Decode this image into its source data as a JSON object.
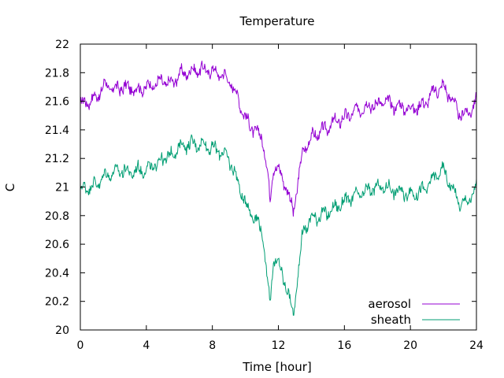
{
  "chart_data": {
    "type": "line",
    "title": "Temperature",
    "xlabel": "Time [hour]",
    "ylabel": "C",
    "xlim": [
      0,
      24
    ],
    "ylim": [
      20,
      22
    ],
    "x_ticks": [
      "0",
      "4",
      "8",
      "12",
      "16",
      "20",
      "24"
    ],
    "y_ticks": [
      "20",
      "20.2",
      "20.4",
      "20.6",
      "20.8",
      "21",
      "21.2",
      "21.4",
      "21.6",
      "21.8",
      "22"
    ],
    "grid": false,
    "legend_position": "bottom-right",
    "series": [
      {
        "name": "aerosol",
        "color": "#9400d3",
        "x": [
          0,
          0.5,
          1,
          1.5,
          2,
          2.5,
          3,
          3.5,
          4,
          4.5,
          5,
          5.5,
          6,
          6.5,
          7,
          7.5,
          8,
          8.5,
          9,
          9.5,
          10,
          10.5,
          11,
          11.3,
          11.5,
          11.7,
          12,
          12.5,
          12.9,
          13.2,
          13.5,
          14,
          14.5,
          15,
          15.5,
          16,
          16.5,
          17,
          17.5,
          18,
          18.5,
          19,
          19.5,
          20,
          20.5,
          21,
          21.5,
          22,
          22.5,
          23,
          23.5,
          24
        ],
        "y": [
          21.58,
          21.6,
          21.63,
          21.72,
          21.68,
          21.7,
          21.69,
          21.68,
          21.7,
          21.72,
          21.74,
          21.72,
          21.79,
          21.8,
          21.82,
          21.82,
          21.81,
          21.79,
          21.75,
          21.64,
          21.48,
          21.4,
          21.35,
          21.15,
          20.9,
          21.15,
          21.12,
          21.0,
          20.82,
          21.05,
          21.25,
          21.35,
          21.38,
          21.42,
          21.46,
          21.48,
          21.52,
          21.55,
          21.57,
          21.58,
          21.6,
          21.57,
          21.56,
          21.55,
          21.56,
          21.6,
          21.68,
          21.7,
          21.62,
          21.5,
          21.52,
          21.6
        ]
      },
      {
        "name": "sheath",
        "color": "#009e73",
        "x": [
          0,
          0.5,
          1,
          1.5,
          2,
          2.5,
          3,
          3.5,
          4,
          4.5,
          5,
          5.5,
          6,
          6.5,
          7,
          7.5,
          8,
          8.5,
          9,
          9.5,
          10,
          10.5,
          11,
          11.3,
          11.5,
          11.7,
          12,
          12.5,
          12.9,
          13.2,
          13.5,
          14,
          14.5,
          15,
          15.5,
          16,
          16.5,
          17,
          17.5,
          18,
          18.5,
          19,
          19.5,
          20,
          20.5,
          21,
          21.5,
          22,
          22.5,
          23,
          23.5,
          24
        ],
        "y": [
          20.98,
          21.0,
          21.02,
          21.08,
          21.1,
          21.12,
          21.1,
          21.12,
          21.12,
          21.15,
          21.2,
          21.22,
          21.28,
          21.3,
          21.3,
          21.3,
          21.27,
          21.25,
          21.2,
          21.05,
          20.88,
          20.8,
          20.7,
          20.4,
          20.18,
          20.5,
          20.46,
          20.3,
          20.1,
          20.4,
          20.7,
          20.78,
          20.8,
          20.82,
          20.86,
          20.9,
          20.93,
          20.95,
          20.98,
          21.0,
          21.0,
          20.98,
          20.96,
          20.95,
          20.96,
          21.0,
          21.08,
          21.12,
          21.0,
          20.88,
          20.9,
          21.0
        ]
      }
    ]
  }
}
